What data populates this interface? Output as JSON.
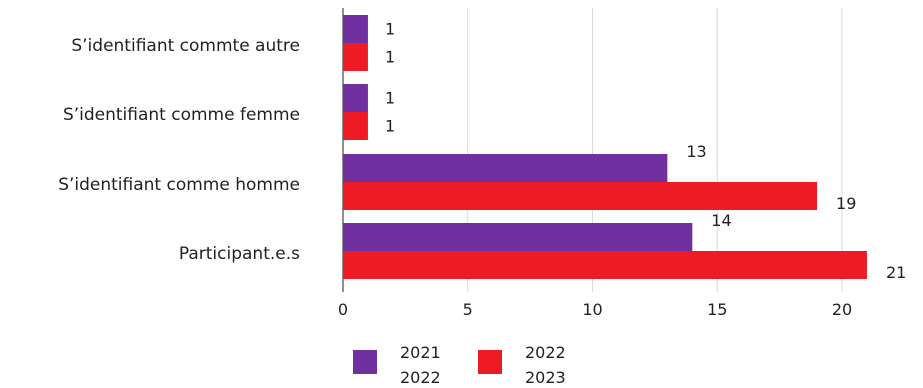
{
  "chart_data": {
    "type": "bar",
    "orientation": "horizontal",
    "categories": [
      "S’identifiant commte autre",
      "S’identifiant comme femme",
      "S’identifiant comme homme",
      "Participant.e.s"
    ],
    "series": [
      {
        "name": "2021 2022",
        "name_lines": [
          "2021",
          "2022"
        ],
        "color": "#7030a0",
        "values": [
          1,
          1,
          13,
          14
        ]
      },
      {
        "name": "2022 2023",
        "name_lines": [
          "2022",
          "2023"
        ],
        "color": "#ed1c24",
        "values": [
          1,
          1,
          19,
          21
        ]
      }
    ],
    "xticks": [
      0,
      5,
      10,
      15,
      20
    ],
    "xlim": [
      0,
      22
    ],
    "grid": true,
    "legend_position": "bottom"
  }
}
